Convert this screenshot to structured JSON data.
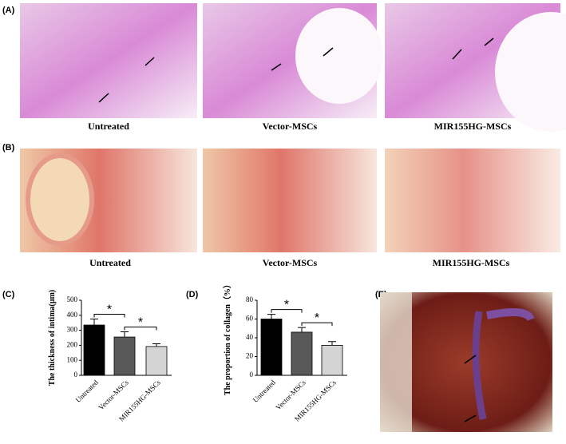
{
  "panels": {
    "A": {
      "label": "(A)",
      "captions": [
        "Untreated",
        "Vector-MSCs",
        "MIR155HG-MSCs"
      ]
    },
    "B": {
      "label": "(B)",
      "captions": [
        "Untreated",
        "Vector-MSCs",
        "MIR155HG-MSCs"
      ]
    },
    "E": {
      "label": "(E)"
    }
  },
  "chart_data": [
    {
      "type": "bar",
      "panel": "(C)",
      "y_label": "The thickness of intima(μm)",
      "categories": [
        "Untreated",
        "Vector-MSCs",
        "MIR155HG-MSCs"
      ],
      "values": [
        335,
        255,
        192
      ],
      "errors": [
        40,
        35,
        18
      ],
      "colors": [
        "#000000",
        "#595959",
        "#d4d4d4"
      ],
      "ylim": [
        0,
        500
      ],
      "yticks": [
        0,
        100,
        200,
        300,
        400,
        500
      ],
      "significance": [
        {
          "between": [
            0,
            1
          ],
          "label": "*"
        },
        {
          "between": [
            1,
            2
          ],
          "label": "*"
        }
      ]
    },
    {
      "type": "bar",
      "panel": "(D)",
      "y_label": "The proportion of collagen（%）",
      "categories": [
        "Untreated",
        "Vector-MSCs",
        "MIR155HG-MSCs"
      ],
      "values": [
        60,
        46,
        32
      ],
      "errors": [
        5,
        5,
        4
      ],
      "colors": [
        "#000000",
        "#595959",
        "#d4d4d4"
      ],
      "ylim": [
        0,
        80
      ],
      "yticks": [
        0,
        20,
        40,
        60,
        80
      ],
      "significance": [
        {
          "between": [
            0,
            1
          ],
          "label": "*"
        },
        {
          "between": [
            1,
            2
          ],
          "label": "*"
        }
      ]
    }
  ]
}
